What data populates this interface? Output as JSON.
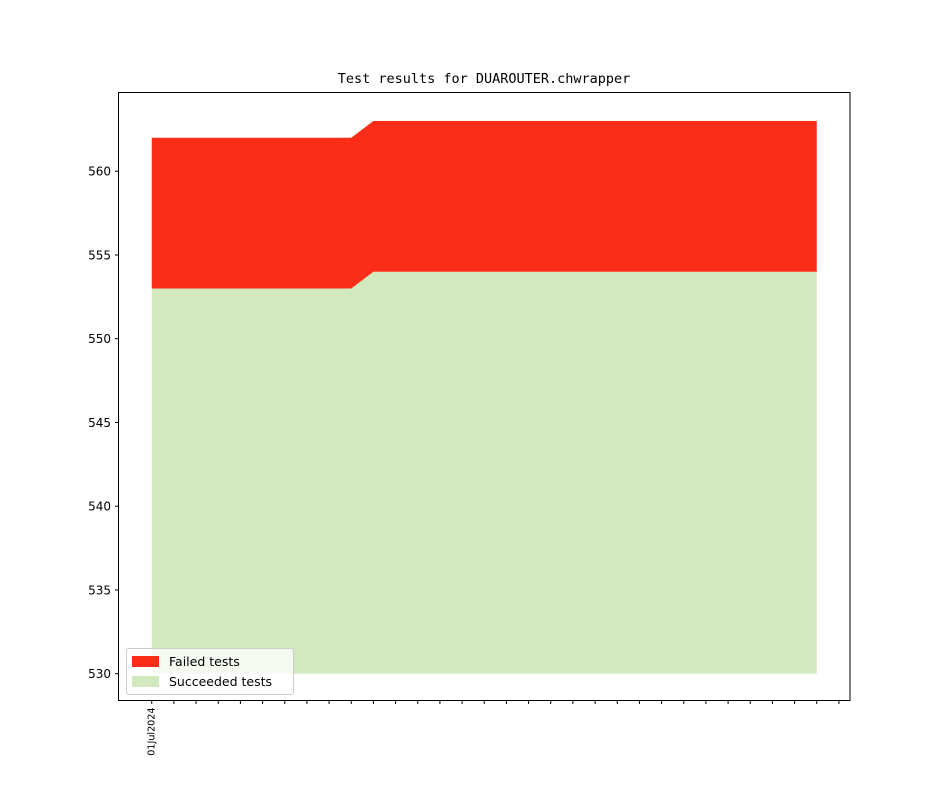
{
  "figure": {
    "background": "#ffffff",
    "frame_color": "#000000"
  },
  "chart_data": {
    "type": "area",
    "variant": "stacked-area",
    "title": "Test results for DUAROUTER.chwrapper",
    "legend": {
      "position": "lower left",
      "entries": [
        "Failed tests",
        "Succeeded tests"
      ]
    },
    "x": {
      "tick_unit": "day",
      "num_ticks": 32,
      "labeled_tick_index": 0,
      "tick_labels_shown": [
        "01Jul2024"
      ],
      "xlim_days": [
        -1.5,
        31.5
      ]
    },
    "y": {
      "ticks": [
        530,
        535,
        540,
        545,
        550,
        555,
        560
      ],
      "ylim": [
        528.4,
        564.7
      ]
    },
    "baseline": 530,
    "grid": false,
    "series": [
      {
        "name": "Failed tests",
        "color": "#fb2d18",
        "stacked_on": "Succeeded tests",
        "values": [
          9,
          9,
          9,
          9,
          9,
          9,
          9,
          9,
          9,
          9,
          9,
          9,
          9,
          9,
          9,
          9,
          9,
          9,
          9,
          9,
          9,
          9,
          9,
          9,
          9,
          9,
          9,
          9,
          9,
          9,
          9
        ]
      },
      {
        "name": "Succeeded tests",
        "color": "#d1e9bd",
        "stacked_on": null,
        "values": [
          553,
          553,
          553,
          553,
          553,
          553,
          553,
          553,
          553,
          553,
          554,
          554,
          554,
          554,
          554,
          554,
          554,
          554,
          554,
          554,
          554,
          554,
          554,
          554,
          554,
          554,
          554,
          554,
          554,
          554,
          554
        ]
      }
    ],
    "derived_totals": [
      562,
      562,
      562,
      562,
      562,
      562,
      562,
      562,
      562,
      562,
      563,
      563,
      563,
      563,
      563,
      563,
      563,
      563,
      563,
      563,
      563,
      563,
      563,
      563,
      563,
      563,
      563,
      563,
      563,
      563,
      563
    ]
  }
}
